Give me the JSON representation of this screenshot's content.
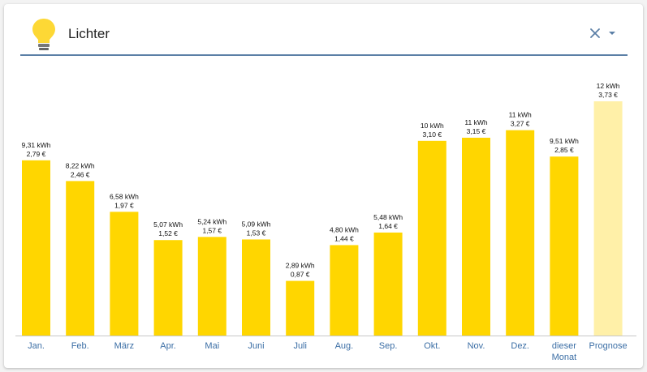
{
  "header": {
    "title": "Lichter",
    "icon": "lightbulb-icon",
    "clear_icon": "close-icon",
    "dropdown_icon": "chevron-down-icon"
  },
  "colors": {
    "bar": "#ffd600",
    "forecast_bar": "#fff0a8",
    "accent": "#5b7fa6",
    "bulb": "#fdd835"
  },
  "chart_data": {
    "type": "bar",
    "categories": [
      "Jan.",
      "Feb.",
      "März",
      "Apr.",
      "Mai",
      "Juni",
      "Juli",
      "Aug.",
      "Sep.",
      "Okt.",
      "Nov.",
      "Dez.",
      "dieser Monat",
      "Prognose"
    ],
    "values": [
      9.31,
      8.22,
      6.58,
      5.07,
      5.24,
      5.09,
      2.89,
      4.8,
      5.48,
      10.0,
      11.0,
      11.0,
      9.51,
      12.0
    ],
    "value_labels": [
      "9,31 kWh",
      "8,22 kWh",
      "6,58 kWh",
      "5,07 kWh",
      "5,24 kWh",
      "5,09 kWh",
      "2,89 kWh",
      "4,80 kWh",
      "5,48 kWh",
      "10 kWh",
      "11 kWh",
      "11 kWh",
      "9,51 kWh",
      "12 kWh"
    ],
    "cost_labels": [
      "2,79 €",
      "2,46 €",
      "1,97 €",
      "1,52 €",
      "1,57 €",
      "1,53 €",
      "0,87 €",
      "1,44 €",
      "1,64 €",
      "3,10 €",
      "3,15 €",
      "3,27 €",
      "2,85 €",
      "3,73 €"
    ],
    "costs": [
      2.79,
      2.46,
      1.97,
      1.52,
      1.57,
      1.53,
      0.87,
      1.44,
      1.64,
      3.1,
      3.15,
      3.27,
      2.85,
      3.73
    ],
    "forecast_index": 13,
    "ylim": [
      0,
      3.73
    ],
    "grid": false,
    "legend": "none"
  }
}
